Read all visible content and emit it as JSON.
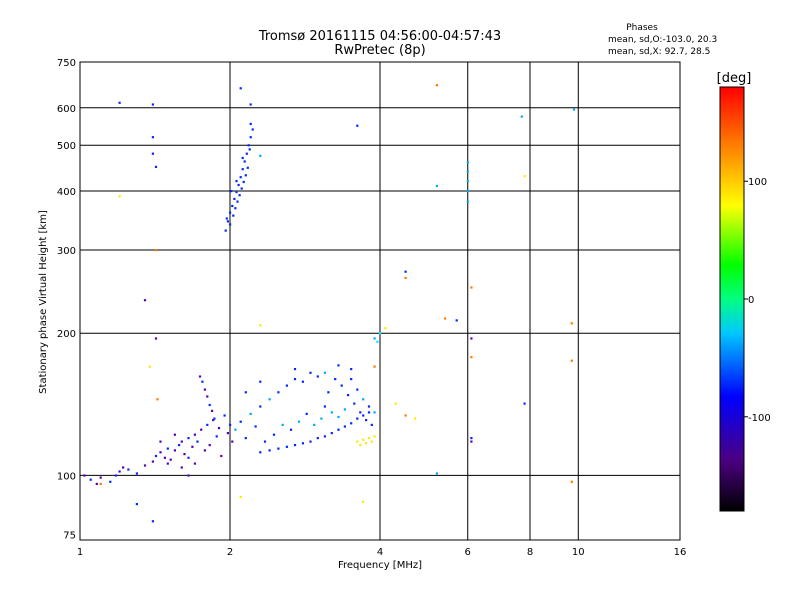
{
  "chart_data": {
    "type": "scatter",
    "title_line1": "Tromsø 20161115 04:56:00-04:57:43",
    "title_line2": "RwPretec (8p)",
    "xlabel": "Frequency [MHz]",
    "ylabel": "Stationary phase Virtual Height [km]",
    "x_scale": "log",
    "y_scale": "log",
    "xlim": [
      1,
      16
    ],
    "ylim": [
      73,
      750
    ],
    "x_ticks": [
      1,
      2,
      4,
      6,
      8,
      10,
      16
    ],
    "y_ticks": [
      75,
      100,
      200,
      300,
      400,
      500,
      600,
      750
    ],
    "grid": true,
    "phases_box": {
      "header": "Phases",
      "line1": "mean, sd,O:-103.0, 20.3",
      "line2": "mean, sd,X:  92.7, 28.5"
    },
    "colorbar": {
      "label": "[deg]",
      "range": [
        -180,
        180
      ],
      "ticks": [
        100,
        0,
        -100
      ]
    },
    "colors": {
      "violet": "#5a00b4",
      "blue": "#0028ff",
      "skyblue": "#00a8ff",
      "cyan": "#00e8ff",
      "yellow": "#ffe800",
      "orange": "#ff7800",
      "red": "#ff2800"
    },
    "points": [
      [
        1.02,
        100,
        "violet"
      ],
      [
        1.05,
        98,
        "blue"
      ],
      [
        1.1,
        99,
        "violet"
      ],
      [
        1.15,
        97,
        "blue"
      ],
      [
        1.2,
        102,
        "violet"
      ],
      [
        1.25,
        103,
        "blue"
      ],
      [
        1.08,
        96,
        "violet"
      ],
      [
        1.18,
        100,
        "blue"
      ],
      [
        1.22,
        104,
        "violet"
      ],
      [
        1.3,
        101,
        "blue"
      ],
      [
        1.35,
        105,
        "violet"
      ],
      [
        1.4,
        107,
        "violet"
      ],
      [
        1.42,
        110,
        "blue"
      ],
      [
        1.45,
        112,
        "violet"
      ],
      [
        1.48,
        109,
        "violet"
      ],
      [
        1.5,
        114,
        "blue"
      ],
      [
        1.52,
        108,
        "violet"
      ],
      [
        1.55,
        113,
        "violet"
      ],
      [
        1.58,
        116,
        "blue"
      ],
      [
        1.6,
        118,
        "violet"
      ],
      [
        1.62,
        111,
        "violet"
      ],
      [
        1.65,
        120,
        "blue"
      ],
      [
        1.68,
        115,
        "violet"
      ],
      [
        1.7,
        122,
        "violet"
      ],
      [
        1.72,
        118,
        "blue"
      ],
      [
        1.75,
        125,
        "violet"
      ],
      [
        1.78,
        113,
        "violet"
      ],
      [
        1.8,
        128,
        "blue"
      ],
      [
        1.82,
        116,
        "violet"
      ],
      [
        1.85,
        131,
        "violet"
      ],
      [
        1.88,
        121,
        "blue"
      ],
      [
        1.9,
        126,
        "violet"
      ],
      [
        1.92,
        110,
        "violet"
      ],
      [
        1.95,
        134,
        "blue"
      ],
      [
        1.98,
        123,
        "violet"
      ],
      [
        2.0,
        128,
        "blue"
      ],
      [
        2.02,
        118,
        "violet"
      ],
      [
        1.74,
        162,
        "violet"
      ],
      [
        1.76,
        158,
        "blue"
      ],
      [
        1.78,
        152,
        "violet"
      ],
      [
        1.8,
        147,
        "violet"
      ],
      [
        1.82,
        141,
        "blue"
      ],
      [
        1.84,
        137,
        "violet"
      ],
      [
        1.86,
        132,
        "blue"
      ],
      [
        1.5,
        106,
        "violet"
      ],
      [
        1.6,
        104,
        "violet"
      ],
      [
        1.7,
        106,
        "violet"
      ],
      [
        1.65,
        109,
        "blue"
      ],
      [
        1.55,
        122,
        "violet"
      ],
      [
        1.45,
        118,
        "violet"
      ],
      [
        2.05,
        125,
        "skyblue"
      ],
      [
        2.1,
        130,
        "blue"
      ],
      [
        2.15,
        120,
        "blue"
      ],
      [
        2.2,
        135,
        "skyblue"
      ],
      [
        2.25,
        127,
        "blue"
      ],
      [
        2.3,
        140,
        "blue"
      ],
      [
        2.35,
        118,
        "blue"
      ],
      [
        2.4,
        145,
        "skyblue"
      ],
      [
        2.45,
        122,
        "blue"
      ],
      [
        2.5,
        150,
        "blue"
      ],
      [
        2.55,
        128,
        "skyblue"
      ],
      [
        2.6,
        155,
        "blue"
      ],
      [
        2.65,
        125,
        "blue"
      ],
      [
        2.7,
        160,
        "blue"
      ],
      [
        2.75,
        130,
        "skyblue"
      ],
      [
        2.8,
        158,
        "blue"
      ],
      [
        2.85,
        135,
        "blue"
      ],
      [
        2.9,
        165,
        "blue"
      ],
      [
        2.95,
        128,
        "skyblue"
      ],
      [
        3.0,
        162,
        "blue"
      ],
      [
        3.05,
        132,
        "skyblue"
      ],
      [
        3.1,
        140,
        "blue"
      ],
      [
        3.15,
        150,
        "blue"
      ],
      [
        3.2,
        136,
        "skyblue"
      ],
      [
        3.25,
        160,
        "blue"
      ],
      [
        3.3,
        133,
        "skyblue"
      ],
      [
        3.35,
        155,
        "blue"
      ],
      [
        3.4,
        138,
        "skyblue"
      ],
      [
        3.45,
        148,
        "blue"
      ],
      [
        3.5,
        160,
        "blue"
      ],
      [
        3.55,
        142,
        "blue"
      ],
      [
        3.6,
        152,
        "blue"
      ],
      [
        3.65,
        136,
        "blue"
      ],
      [
        3.7,
        145,
        "skyblue"
      ],
      [
        3.75,
        131,
        "blue"
      ],
      [
        3.8,
        140,
        "blue"
      ],
      [
        3.85,
        128,
        "blue"
      ],
      [
        3.9,
        136,
        "skyblue"
      ],
      [
        2.3,
        112,
        "blue"
      ],
      [
        2.4,
        113,
        "blue"
      ],
      [
        2.5,
        114,
        "blue"
      ],
      [
        2.6,
        115,
        "blue"
      ],
      [
        2.7,
        116,
        "blue"
      ],
      [
        2.8,
        117,
        "blue"
      ],
      [
        2.9,
        118,
        "blue"
      ],
      [
        3.0,
        120,
        "blue"
      ],
      [
        3.1,
        121,
        "blue"
      ],
      [
        3.2,
        123,
        "blue"
      ],
      [
        3.3,
        125,
        "blue"
      ],
      [
        3.4,
        127,
        "blue"
      ],
      [
        3.5,
        129,
        "blue"
      ],
      [
        3.6,
        132,
        "blue"
      ],
      [
        3.7,
        134,
        "blue"
      ],
      [
        3.8,
        136,
        "blue"
      ],
      [
        3.3,
        171,
        "blue"
      ],
      [
        3.5,
        168,
        "blue"
      ],
      [
        3.1,
        165,
        "skyblue"
      ],
      [
        2.7,
        168,
        "blue"
      ],
      [
        2.3,
        158,
        "blue"
      ],
      [
        2.15,
        150,
        "blue"
      ],
      [
        3.6,
        118,
        "yellow"
      ],
      [
        3.7,
        119,
        "yellow"
      ],
      [
        3.8,
        120,
        "yellow"
      ],
      [
        3.9,
        121,
        "yellow"
      ],
      [
        3.65,
        116,
        "yellow"
      ],
      [
        3.75,
        117,
        "yellow"
      ],
      [
        3.85,
        118,
        "yellow"
      ],
      [
        4.3,
        142,
        "yellow"
      ],
      [
        4.5,
        134,
        "orange"
      ],
      [
        4.7,
        132,
        "yellow"
      ],
      [
        1.96,
        330,
        "blue"
      ],
      [
        1.98,
        345,
        "blue"
      ],
      [
        2.0,
        360,
        "blue"
      ],
      [
        2.02,
        372,
        "blue"
      ],
      [
        2.04,
        385,
        "blue"
      ],
      [
        2.06,
        398,
        "blue"
      ],
      [
        2.08,
        412,
        "blue"
      ],
      [
        2.1,
        428,
        "blue"
      ],
      [
        2.12,
        445,
        "blue"
      ],
      [
        2.14,
        462,
        "blue"
      ],
      [
        2.16,
        480,
        "blue"
      ],
      [
        2.18,
        500,
        "blue"
      ],
      [
        2.2,
        520,
        "blue"
      ],
      [
        2.22,
        540,
        "blue"
      ],
      [
        2.0,
        340,
        "blue"
      ],
      [
        2.03,
        355,
        "blue"
      ],
      [
        2.05,
        368,
        "blue"
      ],
      [
        2.07,
        380,
        "blue"
      ],
      [
        2.09,
        392,
        "blue"
      ],
      [
        2.11,
        405,
        "blue"
      ],
      [
        2.13,
        418,
        "blue"
      ],
      [
        2.15,
        432,
        "blue"
      ],
      [
        2.17,
        448,
        "blue"
      ],
      [
        1.97,
        350,
        "blue"
      ],
      [
        2.01,
        400,
        "blue"
      ],
      [
        2.06,
        420,
        "blue"
      ],
      [
        2.12,
        470,
        "blue"
      ],
      [
        2.19,
        490,
        "blue"
      ],
      [
        2.2,
        555,
        "blue"
      ],
      [
        2.3,
        475,
        "skyblue"
      ],
      [
        1.2,
        615,
        "blue"
      ],
      [
        1.4,
        610,
        "blue"
      ],
      [
        1.4,
        520,
        "blue"
      ],
      [
        1.4,
        480,
        "blue"
      ],
      [
        1.42,
        450,
        "blue"
      ],
      [
        1.42,
        300,
        "orange"
      ],
      [
        1.35,
        235,
        "violet"
      ],
      [
        1.42,
        195,
        "violet"
      ],
      [
        1.38,
        170,
        "yellow"
      ],
      [
        1.43,
        145,
        "orange"
      ],
      [
        1.2,
        390,
        "yellow"
      ],
      [
        2.1,
        660,
        "blue"
      ],
      [
        2.2,
        610,
        "blue"
      ],
      [
        3.6,
        550,
        "blue"
      ],
      [
        5.2,
        670,
        "orange"
      ],
      [
        5.2,
        410,
        "skyblue"
      ],
      [
        6.0,
        460,
        "skyblue"
      ],
      [
        6.0,
        440,
        "skyblue"
      ],
      [
        6.0,
        420,
        "skyblue"
      ],
      [
        6.0,
        400,
        "skyblue"
      ],
      [
        6.0,
        380,
        "skyblue"
      ],
      [
        7.7,
        575,
        "skyblue"
      ],
      [
        7.8,
        430,
        "yellow"
      ],
      [
        9.8,
        595,
        "skyblue"
      ],
      [
        4.5,
        270,
        "blue"
      ],
      [
        4.5,
        262,
        "orange"
      ],
      [
        5.4,
        215,
        "orange"
      ],
      [
        5.7,
        213,
        "blue"
      ],
      [
        6.1,
        250,
        "orange"
      ],
      [
        6.1,
        195,
        "violet"
      ],
      [
        6.1,
        178,
        "orange"
      ],
      [
        4.0,
        200,
        "cyan"
      ],
      [
        4.1,
        205,
        "yellow"
      ],
      [
        3.9,
        195,
        "skyblue"
      ],
      [
        3.95,
        192,
        "cyan"
      ],
      [
        3.9,
        170,
        "orange"
      ],
      [
        9.7,
        210,
        "orange"
      ],
      [
        9.7,
        175,
        "orange"
      ],
      [
        7.8,
        142,
        "blue"
      ],
      [
        6.1,
        120,
        "blue"
      ],
      [
        6.1,
        118,
        "violet"
      ],
      [
        9.7,
        97,
        "orange"
      ],
      [
        5.2,
        101,
        "skyblue"
      ],
      [
        3.7,
        88,
        "yellow"
      ],
      [
        1.4,
        80,
        "blue"
      ],
      [
        1.3,
        87,
        "blue"
      ],
      [
        1.1,
        96,
        "orange"
      ],
      [
        1.65,
        100,
        "violet"
      ],
      [
        2.1,
        90,
        "yellow"
      ],
      [
        2.3,
        208,
        "yellow"
      ]
    ]
  }
}
